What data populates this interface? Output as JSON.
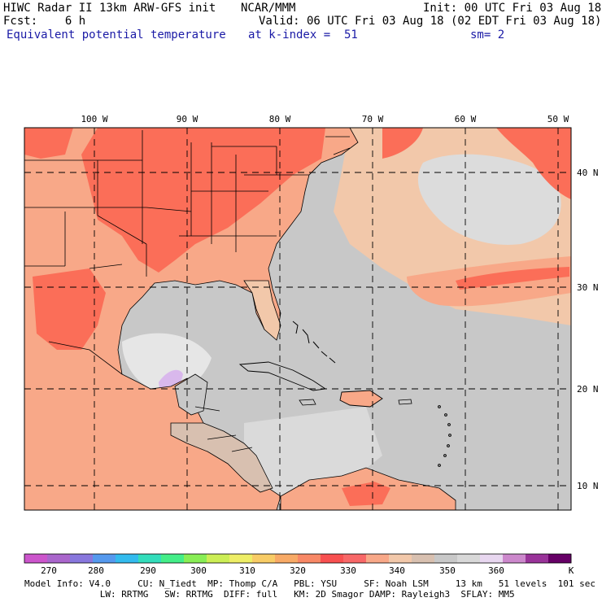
{
  "header": {
    "line1_left": "HIWC Radar II 13km ARW-GFS init",
    "line1_mid": "NCAR/MMM",
    "line1_right": "Init: 00 UTC Fri 03 Aug 18",
    "line2_left": "Fcst:    6 h",
    "line2_right": "Valid: 06 UTC Fri 03 Aug 18 (02 EDT Fri 03 Aug 18)",
    "line3_left": "Equivalent potential temperature",
    "line3_mid": "at k-index =  51",
    "line3_right": "sm= 2"
  },
  "map": {
    "lon_labels": [
      "100 W",
      "90 W",
      "80 W",
      "70 W",
      "60 W",
      "50 W"
    ],
    "lat_labels": [
      "40 N",
      "30 N",
      "20 N",
      "10 N"
    ],
    "colors": {
      "ocean_gray": "#c8c8c8",
      "light_gray": "#d7d7d7",
      "peach": "#f2c8aa",
      "salmon": "#f8a88a",
      "red": "#fb6e58",
      "light_purple": "#e8d7f0",
      "land_border": "#000000"
    }
  },
  "colorbar": {
    "colors": [
      "#cc55cc",
      "#aa66cc",
      "#8877dd",
      "#5599ee",
      "#33bbee",
      "#33ddbb",
      "#44ee88",
      "#88ee55",
      "#ccee55",
      "#eeee66",
      "#f8cc66",
      "#f8aa66",
      "#f88866",
      "#f85050",
      "#f86868",
      "#f8a888",
      "#f2c8aa",
      "#d8c0b0",
      "#c8c8c8",
      "#d8d8d8",
      "#e8d7f0",
      "#cc88cc",
      "#993399",
      "#660066"
    ],
    "tick_labels": [
      "270",
      "280",
      "290",
      "300",
      "310",
      "320",
      "330",
      "340",
      "350",
      "360",
      "K"
    ]
  },
  "footer": {
    "line1": "Model Info: V4.0     CU: N_Tiedt  MP: Thomp C/A   PBL: YSU     SF: Noah LSM     13 km   51 levels  101 sec",
    "line2": "              LW: RRTMG   SW: RRTMG  DIFF: full   KM: 2D Smagor DAMP: Rayleigh3  SFLAY: MM5"
  }
}
